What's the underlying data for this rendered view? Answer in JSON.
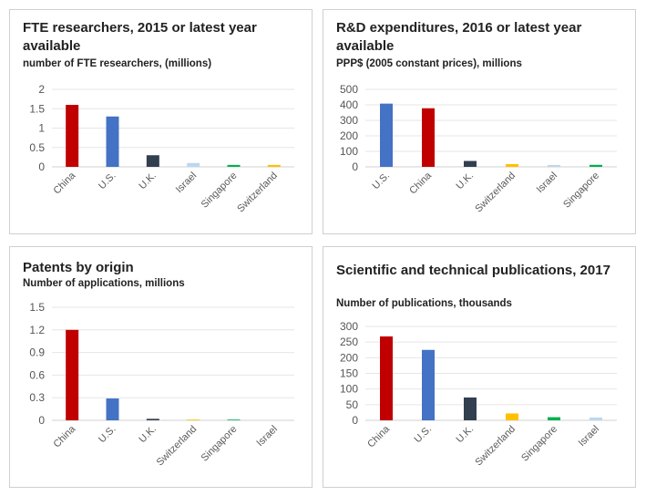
{
  "chart_data": [
    {
      "type": "bar",
      "title": "FTE researchers, 2015 or latest year available",
      "subtitle": "number of FTE researchers, (millions)",
      "categories": [
        "China",
        "U.S.",
        "U.K.",
        "Israel",
        "Singapore",
        "Switzerland"
      ],
      "values": [
        1.6,
        1.3,
        0.3,
        0.1,
        0.05,
        0.05
      ],
      "colors": [
        "#c00000",
        "#4472c4",
        "#323f4f",
        "#bdd7ee",
        "#00b050",
        "#ffc000"
      ],
      "ylim": [
        0,
        2
      ],
      "yticks": [
        "0",
        "0.5",
        "1",
        "1.5",
        "2"
      ],
      "ytick_values": [
        0,
        0.5,
        1,
        1.5,
        2
      ],
      "grid": true
    },
    {
      "type": "bar",
      "title": "R&D expenditures, 2016 or latest year available",
      "subtitle": "PPP$ (2005 constant prices), millions",
      "categories": [
        "U.S.",
        "China",
        "U.K.",
        "Switzerland",
        "Israel",
        "Singapore"
      ],
      "values": [
        408,
        378,
        38,
        18,
        12,
        13
      ],
      "colors": [
        "#4472c4",
        "#c00000",
        "#323f4f",
        "#ffc000",
        "#bdd7ee",
        "#00b050"
      ],
      "ylim": [
        0,
        500
      ],
      "yticks": [
        "0",
        "100",
        "200",
        "300",
        "400",
        "500"
      ],
      "ytick_values": [
        0,
        100,
        200,
        300,
        400,
        500
      ],
      "grid": true
    },
    {
      "type": "bar",
      "title": "Patents by origin",
      "subtitle": "Number of applications, millions",
      "categories": [
        "China",
        "U.S.",
        "U.K.",
        "Switzerland",
        "Singapore",
        "Israel"
      ],
      "values": [
        1.2,
        0.29,
        0.02,
        0.01,
        0.01,
        0.0
      ],
      "colors": [
        "#c00000",
        "#4472c4",
        "#323f4f",
        "#ffc000",
        "#00b050",
        "#bdd7ee"
      ],
      "ylim": [
        0,
        1.5
      ],
      "yticks": [
        "0",
        "0.3",
        "0.6",
        "0.9",
        "1.2",
        "1.5"
      ],
      "ytick_values": [
        0,
        0.3,
        0.6,
        0.9,
        1.2,
        1.5
      ],
      "grid": true
    },
    {
      "type": "bar",
      "title": "Scientific and technical publications, 2017",
      "subtitle": "Number of publications, thousands",
      "categories": [
        "China",
        "U.S.",
        "U.K.",
        "Switzerland",
        "Singapore",
        "Israel"
      ],
      "values": [
        268,
        225,
        73,
        22,
        10,
        9
      ],
      "colors": [
        "#c00000",
        "#4472c4",
        "#323f4f",
        "#ffc000",
        "#00b050",
        "#bdd7ee"
      ],
      "ylim": [
        0,
        300
      ],
      "yticks": [
        "0",
        "50",
        "100",
        "150",
        "200",
        "250",
        "300"
      ],
      "ytick_values": [
        0,
        50,
        100,
        150,
        200,
        250,
        300
      ],
      "grid": true
    }
  ]
}
